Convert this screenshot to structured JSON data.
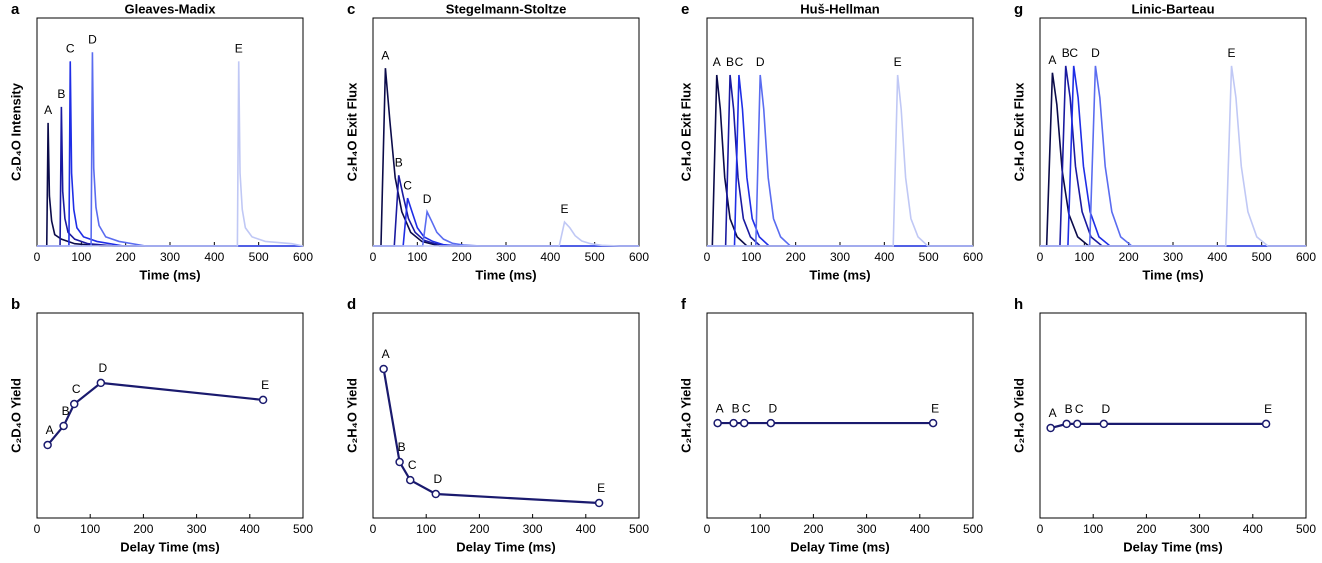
{
  "chart_data": [
    {
      "type": "line",
      "panel_label": "a",
      "title": "Gleaves-Madix",
      "x_label": "Time (ms)",
      "y_label": "C₂D₄O Intensity",
      "xlim": [
        0,
        600
      ],
      "xticks": [
        0,
        100,
        200,
        300,
        400,
        500,
        600
      ],
      "ylim": [
        0,
        1
      ],
      "series": [
        {
          "name": "A",
          "color": "#0b0b4a",
          "x": [
            0,
            22,
            25,
            28,
            33,
            40,
            55,
            85,
            145,
            600
          ],
          "values": [
            0,
            0,
            0.54,
            0.22,
            0.11,
            0.05,
            0.03,
            0.01,
            0,
            0
          ]
        },
        {
          "name": "B",
          "color": "#1a1aa0",
          "x": [
            0,
            52,
            55,
            58,
            63,
            70,
            85,
            115,
            175,
            600
          ],
          "values": [
            0,
            0,
            0.61,
            0.24,
            0.12,
            0.06,
            0.03,
            0.01,
            0,
            0
          ]
        },
        {
          "name": "C",
          "color": "#1f2ee6",
          "x": [
            0,
            72,
            75,
            78,
            83,
            90,
            105,
            135,
            195,
            600
          ],
          "values": [
            0,
            0,
            0.81,
            0.32,
            0.16,
            0.08,
            0.04,
            0.02,
            0,
            0
          ]
        },
        {
          "name": "D",
          "color": "#5a6cf0",
          "x": [
            0,
            122,
            125,
            128,
            133,
            140,
            155,
            185,
            245,
            600
          ],
          "values": [
            0,
            0,
            0.85,
            0.34,
            0.17,
            0.09,
            0.04,
            0.02,
            0,
            0
          ]
        },
        {
          "name": "E",
          "color": "#c0c8f5",
          "x": [
            0,
            452,
            455,
            458,
            463,
            470,
            485,
            515,
            575,
            600
          ],
          "values": [
            0,
            0,
            0.81,
            0.32,
            0.16,
            0.08,
            0.04,
            0.02,
            0.01,
            0
          ]
        }
      ]
    },
    {
      "type": "line",
      "panel_label": "b",
      "x_label": "Delay Time (ms)",
      "y_label": "C₂D₄O Yield",
      "xlim": [
        0,
        500
      ],
      "xticks": [
        0,
        100,
        200,
        300,
        400,
        500
      ],
      "ylim": [
        0,
        1
      ],
      "color": "#1a1a6e",
      "x": [
        20,
        50,
        70,
        120,
        425
      ],
      "values": [
        0.356,
        0.449,
        0.556,
        0.659,
        0.576
      ],
      "point_labels": [
        "A",
        "B",
        "C",
        "D",
        "E"
      ]
    },
    {
      "type": "line",
      "panel_label": "c",
      "title": "Stegelmann-Stoltze",
      "x_label": "Time (ms)",
      "y_label": "C₂H₄O Exit Flux",
      "xlim": [
        0,
        600
      ],
      "xticks": [
        0,
        100,
        200,
        300,
        400,
        500,
        600
      ],
      "ylim": [
        0,
        1
      ],
      "series": [
        {
          "name": "A",
          "color": "#0b0b4a",
          "x": [
            0,
            18,
            28,
            38,
            50,
            65,
            85,
            110,
            150,
            600
          ],
          "values": [
            0,
            0,
            0.78,
            0.55,
            0.3,
            0.15,
            0.06,
            0.02,
            0,
            0
          ]
        },
        {
          "name": "B",
          "color": "#1a1aa0",
          "x": [
            0,
            48,
            58,
            68,
            80,
            95,
            115,
            140,
            180,
            600
          ],
          "values": [
            0,
            0,
            0.31,
            0.22,
            0.12,
            0.06,
            0.025,
            0.01,
            0,
            0
          ]
        },
        {
          "name": "C",
          "color": "#1f2ee6",
          "x": [
            0,
            68,
            78,
            88,
            100,
            115,
            135,
            160,
            200,
            600
          ],
          "values": [
            0,
            0,
            0.21,
            0.15,
            0.08,
            0.04,
            0.02,
            0.005,
            0,
            0
          ]
        },
        {
          "name": "D",
          "color": "#5a6cf0",
          "x": [
            0,
            112,
            122,
            132,
            144,
            159,
            179,
            204,
            244,
            600
          ],
          "values": [
            0,
            0,
            0.15,
            0.11,
            0.06,
            0.03,
            0.012,
            0.004,
            0,
            0
          ]
        },
        {
          "name": "E",
          "color": "#c0c8f5",
          "x": [
            0,
            420,
            432,
            444,
            456,
            471,
            491,
            516,
            556,
            600
          ],
          "values": [
            0,
            0,
            0.105,
            0.08,
            0.045,
            0.022,
            0.01,
            0.003,
            0,
            0
          ]
        }
      ]
    },
    {
      "type": "line",
      "panel_label": "d",
      "x_label": "Delay Time (ms)",
      "y_label": "C₂H₄O Yield",
      "xlim": [
        0,
        500
      ],
      "xticks": [
        0,
        100,
        200,
        300,
        400,
        500
      ],
      "ylim": [
        0,
        1
      ],
      "color": "#1a1a6e",
      "x": [
        20,
        50,
        70,
        118,
        425
      ],
      "values": [
        0.727,
        0.273,
        0.185,
        0.117,
        0.073
      ],
      "point_labels": [
        "A",
        "B",
        "C",
        "D",
        "E"
      ]
    },
    {
      "type": "line",
      "panel_label": "e",
      "title": "Huš-Hellman",
      "x_label": "Time (ms)",
      "y_label": "C₂H₄O Exit Flux",
      "xlim": [
        0,
        600
      ],
      "xticks": [
        0,
        100,
        200,
        300,
        400,
        500,
        600
      ],
      "ylim": [
        0,
        1
      ],
      "series": [
        {
          "name": "A",
          "color": "#0b0b4a",
          "x": [
            0,
            12,
            22,
            30,
            40,
            52,
            68,
            90,
            600
          ],
          "values": [
            0,
            0,
            0.75,
            0.6,
            0.3,
            0.12,
            0.04,
            0,
            0
          ]
        },
        {
          "name": "B",
          "color": "#1a1aa0",
          "x": [
            0,
            42,
            52,
            60,
            70,
            82,
            98,
            120,
            600
          ],
          "values": [
            0,
            0,
            0.75,
            0.6,
            0.3,
            0.12,
            0.04,
            0,
            0
          ]
        },
        {
          "name": "C",
          "color": "#1f2ee6",
          "x": [
            0,
            62,
            72,
            80,
            90,
            102,
            118,
            140,
            600
          ],
          "values": [
            0,
            0,
            0.75,
            0.6,
            0.3,
            0.12,
            0.04,
            0,
            0
          ]
        },
        {
          "name": "D",
          "color": "#5a6cf0",
          "x": [
            0,
            110,
            120,
            128,
            138,
            150,
            166,
            188,
            600
          ],
          "values": [
            0,
            0,
            0.75,
            0.6,
            0.3,
            0.12,
            0.04,
            0,
            0
          ]
        },
        {
          "name": "E",
          "color": "#c0c8f5",
          "x": [
            0,
            420,
            430,
            438,
            448,
            460,
            476,
            498,
            600
          ],
          "values": [
            0,
            0,
            0.75,
            0.6,
            0.3,
            0.12,
            0.04,
            0,
            0
          ]
        }
      ]
    },
    {
      "type": "line",
      "panel_label": "f",
      "x_label": "Delay Time (ms)",
      "y_label": "C₂H₄O Yield",
      "xlim": [
        0,
        500
      ],
      "xticks": [
        0,
        100,
        200,
        300,
        400,
        500
      ],
      "ylim": [
        0,
        1
      ],
      "color": "#1a1a6e",
      "x": [
        20,
        50,
        70,
        120,
        425
      ],
      "values": [
        0.463,
        0.463,
        0.463,
        0.463,
        0.463
      ],
      "point_labels": [
        "A",
        "B",
        "C",
        "D",
        "E"
      ]
    },
    {
      "type": "line",
      "panel_label": "g",
      "title": "Linic-Barteau",
      "x_label": "Time (ms)",
      "y_label": "C₂H₄O Exit Flux",
      "xlim": [
        0,
        600
      ],
      "xticks": [
        0,
        100,
        200,
        300,
        400,
        500,
        600
      ],
      "ylim": [
        0,
        1
      ],
      "series": [
        {
          "name": "A",
          "color": "#0b0b4a",
          "x": [
            0,
            15,
            28,
            38,
            50,
            65,
            85,
            110,
            600
          ],
          "values": [
            0,
            0,
            0.76,
            0.62,
            0.33,
            0.14,
            0.04,
            0,
            0
          ]
        },
        {
          "name": "B",
          "color": "#1a1aa0",
          "x": [
            0,
            45,
            58,
            68,
            80,
            95,
            115,
            140,
            600
          ],
          "values": [
            0,
            0,
            0.79,
            0.65,
            0.35,
            0.15,
            0.04,
            0,
            0
          ]
        },
        {
          "name": "C",
          "color": "#1f2ee6",
          "x": [
            0,
            63,
            76,
            86,
            98,
            113,
            133,
            158,
            600
          ],
          "values": [
            0,
            0,
            0.79,
            0.65,
            0.35,
            0.15,
            0.04,
            0,
            0
          ]
        },
        {
          "name": "D",
          "color": "#5a6cf0",
          "x": [
            0,
            112,
            125,
            135,
            147,
            162,
            182,
            207,
            600
          ],
          "values": [
            0,
            0,
            0.79,
            0.65,
            0.35,
            0.15,
            0.04,
            0,
            0
          ]
        },
        {
          "name": "E",
          "color": "#c0c8f5",
          "x": [
            0,
            419,
            432,
            442,
            454,
            469,
            489,
            514,
            600
          ],
          "values": [
            0,
            0,
            0.79,
            0.65,
            0.35,
            0.15,
            0.04,
            0,
            0
          ]
        }
      ]
    },
    {
      "type": "line",
      "panel_label": "h",
      "x_label": "Delay Time (ms)",
      "y_label": "C₂H₄O Yield",
      "xlim": [
        0,
        500
      ],
      "xticks": [
        0,
        100,
        200,
        300,
        400,
        500
      ],
      "ylim": [
        0,
        1
      ],
      "color": "#1a1a6e",
      "x": [
        20,
        50,
        70,
        120,
        425
      ],
      "values": [
        0.439,
        0.459,
        0.459,
        0.459,
        0.459
      ],
      "point_labels": [
        "A",
        "B",
        "C",
        "D",
        "E"
      ]
    }
  ]
}
